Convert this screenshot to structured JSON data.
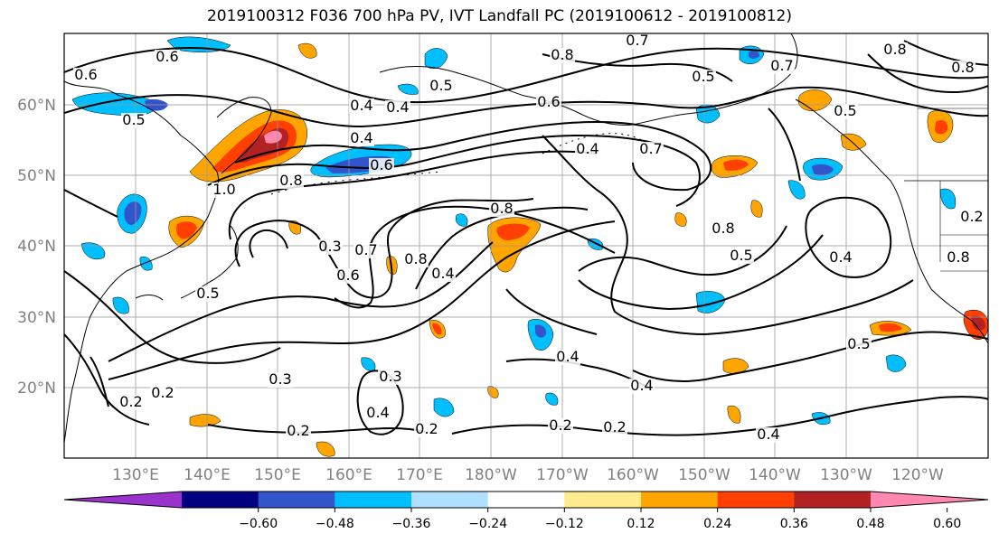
{
  "title": "2019100312 F036 700 hPa PV, IVT Landfall PC (2019100612 - 2019100812)",
  "latitude_labels": [
    "60°N",
    "50°N",
    "40°N",
    "30°N",
    "20°N"
  ],
  "longitude_labels": [
    "130°E",
    "140°E",
    "150°E",
    "160°E",
    "170°E",
    "180°W",
    "170°W",
    "160°W",
    "150°W",
    "140°W",
    "130°W",
    "120°W"
  ],
  "contour_labels": [
    "0.6",
    "0.6",
    "0.5",
    "0.4",
    "0.5",
    "0.6",
    "0.8",
    "0.7",
    "0.7",
    "0.5",
    "0.8",
    "0.8",
    "0.7",
    "0.8",
    "1.0",
    "0.4",
    "0.6",
    "0.4",
    "0.2",
    "0.7",
    "0.8",
    "0.3",
    "0.5",
    "0.6",
    "0.8",
    "0.4",
    "0.8",
    "0.8",
    "0.5",
    "0.4",
    "0.4",
    "0.5",
    "0.3",
    "0.4",
    "0.3",
    "0.2",
    "0.2",
    "0.4",
    "0.2",
    "0.2",
    "0.2",
    "0.2",
    "0.5",
    "0.4",
    "0.4"
  ],
  "colorbar": {
    "colors": [
      "#9933cc",
      "#000080",
      "#3355cc",
      "#00bfff",
      "#b0e0ff",
      "#ffffff",
      "#ffeb8c",
      "#ffa500",
      "#ff4000",
      "#b22222",
      "#ff88b0"
    ],
    "tick_labels": [
      "−0.60",
      "−0.48",
      "−0.36",
      "−0.24",
      "−0.12",
      "0.12",
      "0.24",
      "0.36",
      "0.48",
      "0.60"
    ]
  },
  "colors": {
    "contour": "#000000",
    "grid": "#808080",
    "coast": "#000000"
  }
}
